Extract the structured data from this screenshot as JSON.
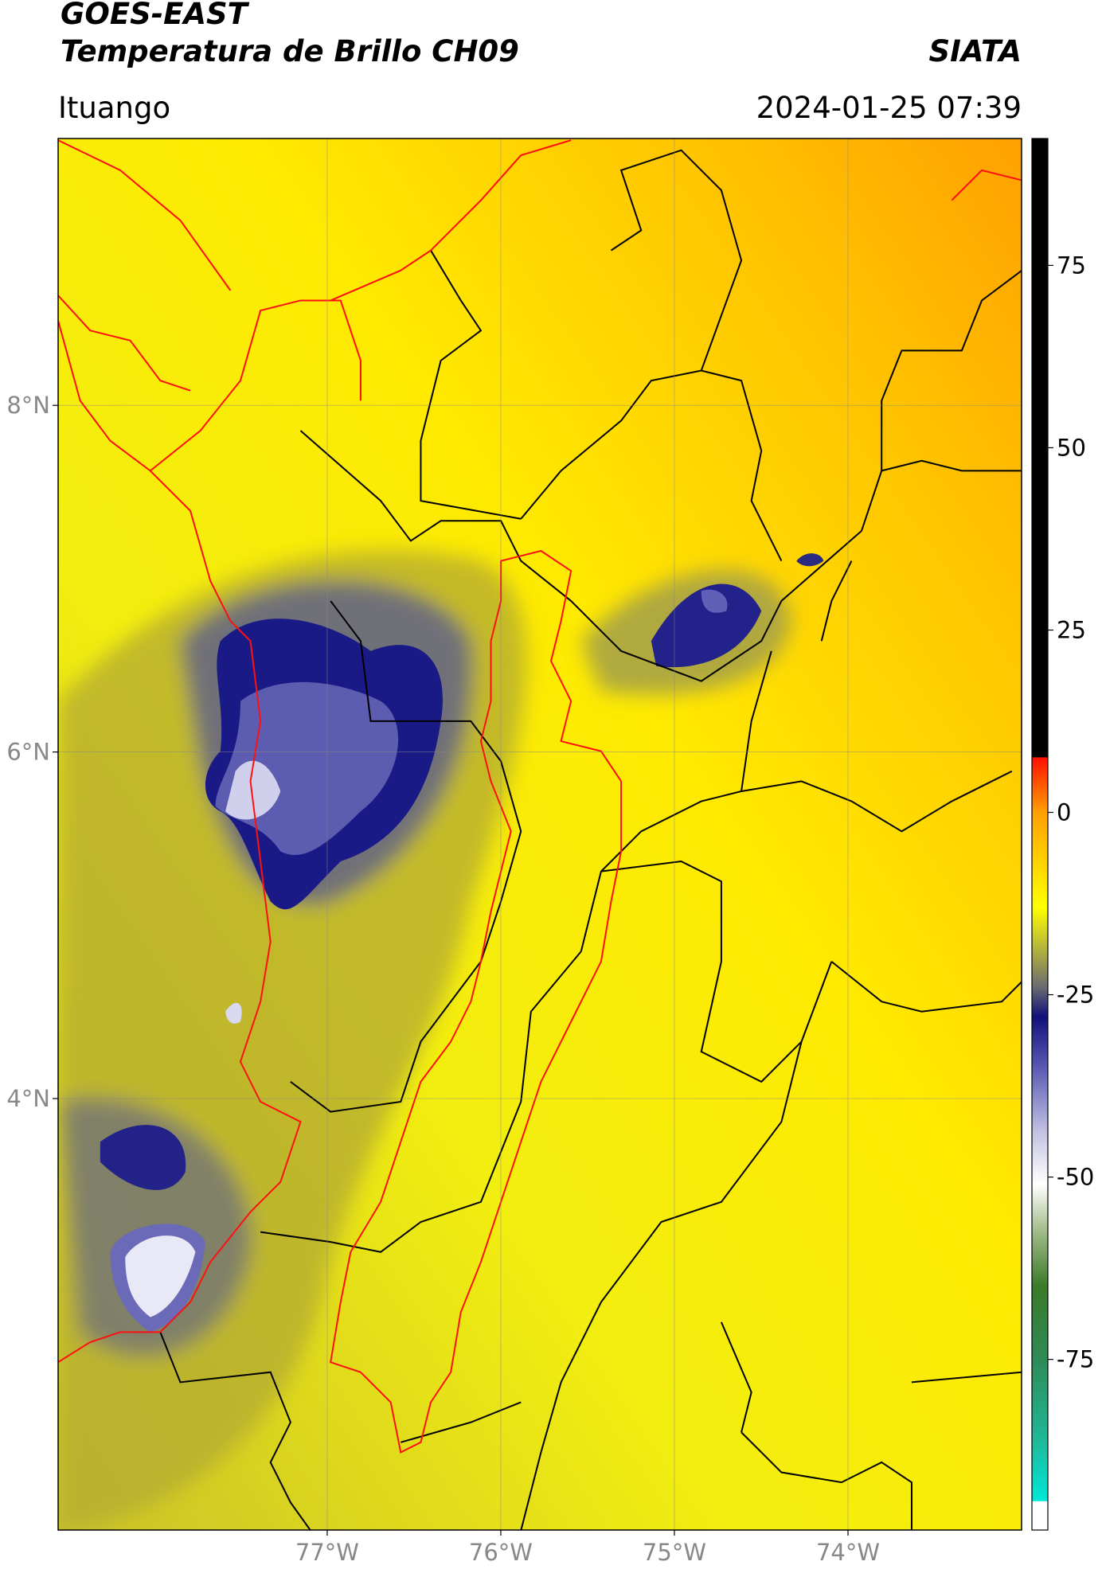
{
  "chart_data": {
    "type": "map",
    "title_lines": [
      "GOES-EAST",
      "Temperatura de Brillo CH09"
    ],
    "source": "SIATA",
    "location": "Ituango",
    "datetime": "2024-01-25 07:39",
    "xlim": [
      -78.55,
      -73.0
    ],
    "ylim": [
      1.51,
      9.54
    ],
    "xticks": [
      {
        "value": -77,
        "label": "77°W"
      },
      {
        "value": -76,
        "label": "76°W"
      },
      {
        "value": -75,
        "label": "75°W"
      },
      {
        "value": -74,
        "label": "74°W"
      }
    ],
    "yticks": [
      {
        "value": 8,
        "label": "8°N"
      },
      {
        "value": 6,
        "label": "6°N"
      },
      {
        "value": 4,
        "label": "4°N"
      }
    ],
    "grid": true,
    "clim": [
      -98.4,
      92.4
    ],
    "cticks": [
      75,
      50,
      25,
      0,
      -25,
      -50,
      -75
    ],
    "colorbar_stops": [
      {
        "value": -98.4,
        "color": "#ffffff"
      },
      {
        "value": -94.5,
        "color": "#ffffff"
      },
      {
        "value": -94.4,
        "color": "#00e8d8"
      },
      {
        "value": -86,
        "color": "#20b898"
      },
      {
        "value": -75,
        "color": "#2e8b57"
      },
      {
        "value": -65,
        "color": "#3a7a28"
      },
      {
        "value": -57,
        "color": "#a8c090"
      },
      {
        "value": -51,
        "color": "#ffffff"
      },
      {
        "value": -44,
        "color": "#c4c4e4"
      },
      {
        "value": -35,
        "color": "#5a5ab4"
      },
      {
        "value": -28,
        "color": "#10107c"
      },
      {
        "value": -24,
        "color": "#6a6a70"
      },
      {
        "value": -19,
        "color": "#b0b040"
      },
      {
        "value": -13,
        "color": "#ffff00"
      },
      {
        "value": 0,
        "color": "#ffa000"
      },
      {
        "value": 7.5,
        "color": "#ff1000"
      },
      {
        "value": 7.6,
        "color": "#000000"
      },
      {
        "value": 92.4,
        "color": "#000000"
      }
    ]
  }
}
